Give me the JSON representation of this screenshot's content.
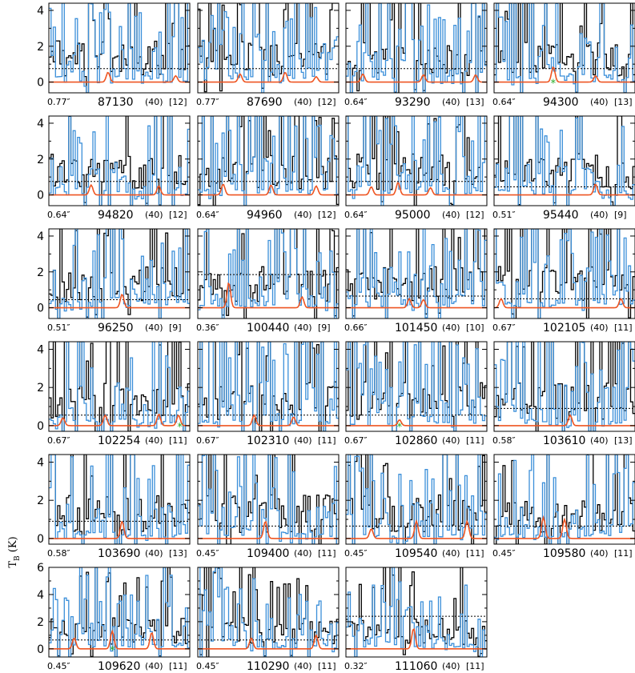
{
  "figure": {
    "y_axis_label": "T",
    "y_axis_label_sub": "B",
    "y_axis_label_unit": " (K)"
  },
  "chart_data": {
    "type": "line",
    "description_series": [
      "observed spectrum (black)",
      "second spectrum (blue)",
      "model (red)"
    ],
    "colors": {
      "observed": "#000000",
      "alt": "#3b8fd9",
      "model": "#ee5522",
      "marker": "#22aa22",
      "threshold": "#000000"
    },
    "panels": [
      {
        "freq": "87130",
        "beam": "0.77″",
        "label1": "(40)",
        "label2": "[12]",
        "ylim": [
          -0.6,
          4.4
        ],
        "yticks": [
          0,
          2,
          4
        ],
        "threshold": 0.75,
        "peaks": [
          [
            0.42,
            0.55
          ],
          [
            0.9,
            0.35
          ]
        ],
        "seed": 1,
        "star": null
      },
      {
        "freq": "87690",
        "beam": "0.77″",
        "label1": "(40)",
        "label2": "[12]",
        "ylim": [
          -0.6,
          4.4
        ],
        "yticks": [],
        "threshold": 0.75,
        "peaks": [
          [
            0.3,
            0.45
          ],
          [
            0.62,
            0.55
          ],
          [
            0.84,
            0.3
          ]
        ],
        "seed": 2,
        "star": null
      },
      {
        "freq": "93290",
        "beam": "0.64″",
        "label1": "(40)",
        "label2": "[13]",
        "ylim": [
          -0.6,
          4.4
        ],
        "yticks": [],
        "threshold": 0.75,
        "peaks": [
          [
            0.12,
            0.45
          ],
          [
            0.55,
            0.4
          ],
          [
            0.92,
            0.4
          ]
        ],
        "seed": 3,
        "star": null
      },
      {
        "freq": "94300",
        "beam": "0.64″",
        "label1": "(40)",
        "label2": "[13]",
        "ylim": [
          -0.6,
          4.4
        ],
        "yticks": [],
        "threshold": 0.75,
        "peaks": [
          [
            0.42,
            0.85
          ],
          [
            0.72,
            0.35
          ]
        ],
        "seed": 4,
        "star": 0.42
      },
      {
        "freq": "94820",
        "beam": "0.64″",
        "label1": "(40)",
        "label2": "[12]",
        "ylim": [
          -0.6,
          4.4
        ],
        "yticks": [
          0,
          2,
          4
        ],
        "threshold": 0.75,
        "peaks": [
          [
            0.3,
            0.55
          ],
          [
            0.78,
            0.5
          ]
        ],
        "seed": 5,
        "star": null
      },
      {
        "freq": "94960",
        "beam": "0.64″",
        "label1": "(40)",
        "label2": "[12]",
        "ylim": [
          -0.6,
          4.4
        ],
        "yticks": [],
        "threshold": 0.75,
        "peaks": [
          [
            0.18,
            0.6
          ],
          [
            0.52,
            0.55
          ],
          [
            0.84,
            0.5
          ]
        ],
        "seed": 6,
        "star": null
      },
      {
        "freq": "95000",
        "beam": "0.64″",
        "label1": "(40)",
        "label2": "[12]",
        "ylim": [
          -0.6,
          4.4
        ],
        "yticks": [],
        "threshold": 0.75,
        "peaks": [
          [
            0.18,
            0.45
          ],
          [
            0.37,
            0.7
          ],
          [
            0.6,
            0.4
          ]
        ],
        "seed": 7,
        "star": null
      },
      {
        "freq": "95440",
        "beam": "0.51″",
        "label1": "(40)",
        "label2": "[9]",
        "ylim": [
          -0.6,
          4.4
        ],
        "yticks": [],
        "threshold": 0.45,
        "peaks": [
          [
            0.72,
            0.6
          ]
        ],
        "seed": 8,
        "star": null
      },
      {
        "freq": "96250",
        "beam": "0.51″",
        "label1": "(40)",
        "label2": "[9]",
        "ylim": [
          -0.6,
          4.4
        ],
        "yticks": [
          0,
          2,
          4
        ],
        "threshold": 0.45,
        "peaks": [
          [
            0.52,
            0.75
          ]
        ],
        "seed": 9,
        "star": null
      },
      {
        "freq": "100440",
        "beam": "0.36″",
        "label1": "(40)",
        "label2": "[9]",
        "ylim": [
          -0.6,
          4.4
        ],
        "yticks": [],
        "threshold": 1.85,
        "peaks": [
          [
            0.22,
            1.4
          ],
          [
            0.74,
            0.6
          ]
        ],
        "seed": 10,
        "star": null
      },
      {
        "freq": "101450",
        "beam": "0.66″",
        "label1": "(40)",
        "label2": "[10]",
        "ylim": [
          -0.6,
          4.4
        ],
        "yticks": [],
        "threshold": 0.65,
        "peaks": [
          [
            0.45,
            0.5
          ],
          [
            0.55,
            0.45
          ]
        ],
        "seed": 11,
        "star": null
      },
      {
        "freq": "102105",
        "beam": "0.67″",
        "label1": "(40)",
        "label2": "[11]",
        "ylim": [
          -0.6,
          4.4
        ],
        "yticks": [],
        "threshold": 0.5,
        "peaks": [
          [
            0.05,
            0.5
          ],
          [
            0.9,
            0.5
          ]
        ],
        "seed": 12,
        "star": null
      },
      {
        "freq": "102254",
        "beam": "0.67″",
        "label1": "(40)",
        "label2": "[11]",
        "ylim": [
          -0.3,
          4.4
        ],
        "yticks": [
          0,
          2,
          4
        ],
        "threshold": 0.55,
        "peaks": [
          [
            0.1,
            0.4
          ],
          [
            0.4,
            0.55
          ],
          [
            0.78,
            0.6
          ],
          [
            0.92,
            0.55
          ]
        ],
        "seed": 13,
        "star": 0.93
      },
      {
        "freq": "102310",
        "beam": "0.67″",
        "label1": "(40)",
        "label2": "[11]",
        "ylim": [
          -0.3,
          4.4
        ],
        "yticks": [],
        "threshold": 0.55,
        "peaks": [
          [
            0.4,
            0.55
          ],
          [
            0.68,
            0.45
          ]
        ],
        "seed": 14,
        "star": null
      },
      {
        "freq": "102860",
        "beam": "0.67″",
        "label1": "(40)",
        "label2": "[11]",
        "ylim": [
          -0.3,
          4.4
        ],
        "yticks": [],
        "threshold": 0.55,
        "peaks": [
          [
            0.38,
            0.3
          ]
        ],
        "seed": 15,
        "star": 0.38
      },
      {
        "freq": "103610",
        "beam": "0.58″",
        "label1": "(40)",
        "label2": "[13]",
        "ylim": [
          -0.3,
          4.4
        ],
        "yticks": [],
        "threshold": 0.9,
        "peaks": [
          [
            0.54,
            0.55
          ]
        ],
        "seed": 16,
        "star": null
      },
      {
        "freq": "103690",
        "beam": "0.58″",
        "label1": "(40)",
        "label2": "[13]",
        "ylim": [
          -0.3,
          4.4
        ],
        "yticks": [
          0,
          2,
          4
        ],
        "threshold": 0.9,
        "peaks": [
          [
            0.52,
            0.9
          ]
        ],
        "seed": 17,
        "star": null
      },
      {
        "freq": "109400",
        "beam": "0.45″",
        "label1": "(40)",
        "label2": "[11]",
        "ylim": [
          -0.3,
          4.4
        ],
        "yticks": [],
        "threshold": 0.65,
        "peaks": [
          [
            0.48,
            0.9
          ]
        ],
        "seed": 18,
        "star": null
      },
      {
        "freq": "109540",
        "beam": "0.45″",
        "label1": "(40)",
        "label2": "[11]",
        "ylim": [
          -0.3,
          4.4
        ],
        "yticks": [],
        "threshold": 0.65,
        "peaks": [
          [
            0.18,
            0.5
          ],
          [
            0.5,
            0.9
          ],
          [
            0.86,
            0.9
          ]
        ],
        "seed": 19,
        "star": null
      },
      {
        "freq": "109580",
        "beam": "0.45″",
        "label1": "(40)",
        "label2": "[11]",
        "ylim": [
          -0.3,
          4.4
        ],
        "yticks": [],
        "threshold": 0.65,
        "peaks": [
          [
            0.35,
            1.1
          ],
          [
            0.5,
            1.0
          ]
        ],
        "seed": 20,
        "star": null
      },
      {
        "freq": "109620",
        "beam": "0.45″",
        "label1": "(40)",
        "label2": "[11]",
        "ylim": [
          -0.6,
          6.0
        ],
        "yticks": [
          0,
          2,
          4,
          6
        ],
        "threshold": 0.65,
        "peaks": [
          [
            0.18,
            0.8
          ],
          [
            0.45,
            1.3
          ],
          [
            0.73,
            1.2
          ]
        ],
        "seed": 21,
        "star": 0.45
      },
      {
        "freq": "110290",
        "beam": "0.45″",
        "label1": "(40)",
        "label2": "[11]",
        "ylim": [
          -0.6,
          6.0
        ],
        "yticks": [],
        "threshold": 0.65,
        "peaks": [
          [
            0.38,
            0.8
          ],
          [
            0.84,
            1.0
          ]
        ],
        "seed": 22,
        "star": null
      },
      {
        "freq": "111060",
        "beam": "0.32″",
        "label1": "(40)",
        "label2": "[11]",
        "ylim": [
          -0.6,
          6.0
        ],
        "yticks": [],
        "threshold": 2.4,
        "peaks": [
          [
            0.48,
            1.5
          ]
        ],
        "seed": 23,
        "star": null
      }
    ]
  }
}
